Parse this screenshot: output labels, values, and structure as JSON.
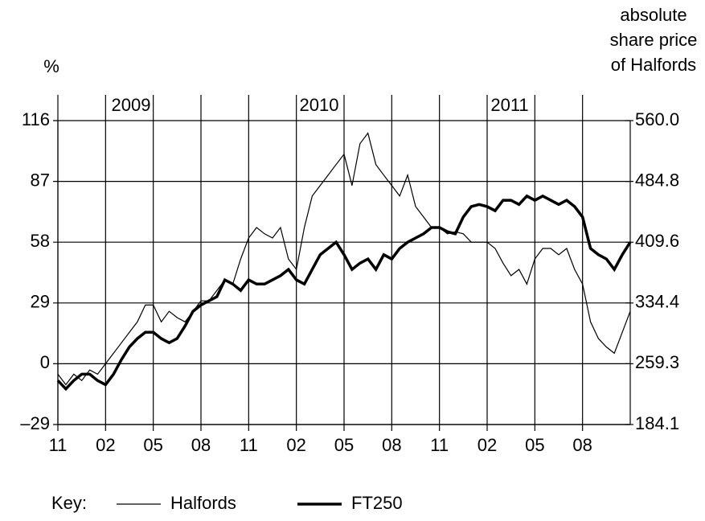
{
  "chart_data": {
    "type": "line",
    "y_label": "%",
    "y2_label": [
      "absolute",
      "share price",
      "of Halfords"
    ],
    "years": [
      "2009",
      "2010",
      "2011"
    ],
    "key_label": "Key:",
    "x": [
      0,
      0.5,
      1,
      1.5,
      2,
      2.5,
      3,
      3.5,
      4,
      4.5,
      5,
      5.5,
      6,
      6.5,
      7,
      7.5,
      8,
      8.5,
      9,
      9.5,
      10,
      10.5,
      11,
      11.5,
      12,
      12.5,
      13,
      13.5,
      14,
      14.5,
      15,
      15.5,
      16,
      16.5,
      17,
      17.5,
      18,
      18.5,
      19,
      19.5,
      20,
      20.5,
      21,
      21.5,
      22,
      22.5,
      23,
      23.5,
      24,
      24.5,
      25,
      25.5,
      26,
      26.5,
      27,
      27.5,
      28,
      28.5,
      29,
      29.5,
      30,
      30.5,
      31,
      31.5,
      32,
      32.5,
      33,
      33.5,
      34,
      34.5,
      35,
      35.5,
      36
    ],
    "xlim": [
      0,
      36
    ],
    "xticks": [
      {
        "value": 0,
        "label": "11"
      },
      {
        "value": 3,
        "label": "02"
      },
      {
        "value": 6,
        "label": "05"
      },
      {
        "value": 9,
        "label": "08"
      },
      {
        "value": 12,
        "label": "11"
      },
      {
        "value": 15,
        "label": "02"
      },
      {
        "value": 18,
        "label": "05"
      },
      {
        "value": 21,
        "label": "08"
      },
      {
        "value": 24,
        "label": "11"
      },
      {
        "value": 27,
        "label": "02"
      },
      {
        "value": 30,
        "label": "05"
      },
      {
        "value": 33,
        "label": "08"
      }
    ],
    "ylim": [
      -29,
      116
    ],
    "yticks": [
      {
        "value": -29,
        "label": "–29"
      },
      0,
      29,
      58,
      87,
      116
    ],
    "y2lim": [
      184.1,
      560
    ],
    "y2ticks": [
      184.1,
      259.3,
      334.4,
      409.6,
      484.8,
      {
        "value": 560,
        "label": "560.0"
      }
    ],
    "grid": true,
    "series": [
      {
        "name": "Halfords",
        "color": "#000000",
        "width": 1.2,
        "values": [
          -5,
          -10,
          -5,
          -8,
          -3,
          -5,
          0,
          5,
          10,
          15,
          20,
          28,
          28,
          20,
          25,
          22,
          20,
          25,
          30,
          30,
          35,
          40,
          38,
          50,
          60,
          65,
          62,
          60,
          65,
          50,
          45,
          65,
          80,
          85,
          90,
          95,
          100,
          85,
          105,
          110,
          95,
          90,
          85,
          80,
          90,
          75,
          70,
          65,
          65,
          62,
          63,
          62,
          58,
          58,
          58,
          55,
          48,
          42,
          45,
          38,
          50,
          55,
          55,
          52,
          55,
          45,
          38,
          20,
          12,
          8,
          5,
          15,
          25
        ]
      },
      {
        "name": "FT250",
        "color": "#000000",
        "width": 3.5,
        "values": [
          -8,
          -12,
          -8,
          -5,
          -5,
          -8,
          -10,
          -5,
          2,
          8,
          12,
          15,
          15,
          12,
          10,
          12,
          18,
          25,
          28,
          30,
          32,
          40,
          38,
          35,
          40,
          38,
          38,
          40,
          42,
          45,
          40,
          38,
          45,
          52,
          55,
          58,
          52,
          45,
          48,
          50,
          45,
          52,
          50,
          55,
          58,
          60,
          62,
          65,
          65,
          63,
          62,
          70,
          75,
          76,
          75,
          73,
          78,
          78,
          76,
          80,
          78,
          80,
          78,
          76,
          78,
          75,
          70,
          55,
          52,
          50,
          45,
          52,
          58
        ]
      }
    ]
  }
}
